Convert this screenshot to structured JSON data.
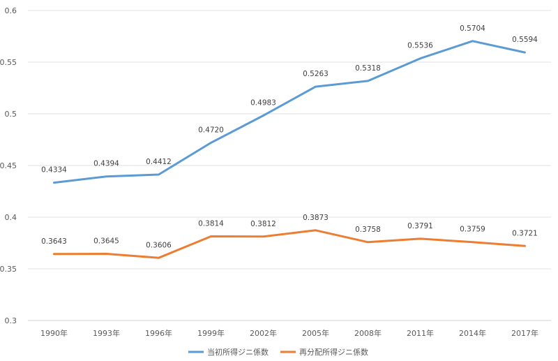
{
  "chart_data": {
    "type": "line",
    "categories": [
      "1990年",
      "1993年",
      "1996年",
      "1999年",
      "2002年",
      "2005年",
      "2008年",
      "2011年",
      "2014年",
      "2017年"
    ],
    "series": [
      {
        "name": "当初所得ジニ係数",
        "color": "#5B9BD5",
        "values": [
          0.4334,
          0.4394,
          0.4412,
          0.472,
          0.4983,
          0.5263,
          0.5318,
          0.5536,
          0.5704,
          0.5594
        ],
        "labels": [
          "0.4334",
          "0.4394",
          "0.4412",
          "0.4720",
          "0.4983",
          "0.5263",
          "0.5318",
          "0.5536",
          "0.5704",
          "0.5594"
        ]
      },
      {
        "name": "再分配所得ジニ係数",
        "color": "#ED7D31",
        "values": [
          0.3643,
          0.3645,
          0.3606,
          0.3814,
          0.3812,
          0.3873,
          0.3758,
          0.3791,
          0.3759,
          0.3721
        ],
        "labels": [
          "0.3643",
          "0.3645",
          "0.3606",
          "0.3814",
          "0.3812",
          "0.3873",
          "0.3758",
          "0.3791",
          "0.3759",
          "0.3721"
        ]
      }
    ],
    "yticks": [
      "0.3",
      "0.35",
      "0.4",
      "0.45",
      "0.5",
      "0.55",
      "0.6"
    ],
    "ylim": [
      0.3,
      0.6
    ],
    "grid": true,
    "legend_position": "bottom"
  }
}
